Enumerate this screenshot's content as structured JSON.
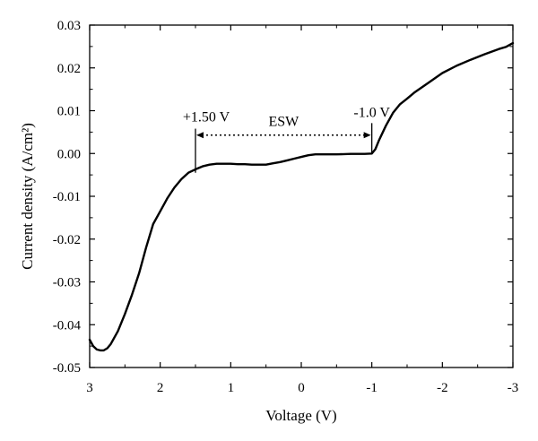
{
  "chart_data": {
    "type": "line",
    "title": "",
    "xlabel": "Voltage (V)",
    "ylabel": "Current density (A/cm²)",
    "xlim": [
      3,
      -3
    ],
    "ylim": [
      -0.05,
      0.03
    ],
    "x_reversed": true,
    "grid": false,
    "legend": "none",
    "x_ticks": [
      3,
      2,
      1,
      0,
      -1,
      -2,
      -3
    ],
    "x_tick_labels": [
      "3",
      "2",
      "1",
      "0",
      "-1",
      "-2",
      "-3"
    ],
    "y_ticks": [
      -0.05,
      -0.04,
      -0.03,
      -0.02,
      -0.01,
      0.0,
      0.01,
      0.02,
      0.03
    ],
    "y_tick_labels": [
      "-0.05",
      "-0.04",
      "-0.03",
      "-0.02",
      "-0.01",
      "0.00",
      "0.01",
      "0.02",
      "0.03"
    ],
    "line_color": "#000000",
    "series": [
      {
        "x": [
          3.0,
          2.95,
          2.9,
          2.85,
          2.8,
          2.75,
          2.7,
          2.6,
          2.5,
          2.4,
          2.3,
          2.2,
          2.1,
          2.0,
          1.9,
          1.8,
          1.7,
          1.6,
          1.5,
          1.4,
          1.3,
          1.2,
          1.1,
          1.0,
          0.9,
          0.8,
          0.7,
          0.6,
          0.5,
          0.4,
          0.3,
          0.2,
          0.1,
          0.0,
          -0.1,
          -0.2,
          -0.3,
          -0.5,
          -0.7,
          -0.9,
          -1.0,
          -1.05,
          -1.1,
          -1.2,
          -1.3,
          -1.4,
          -1.5,
          -1.6,
          -1.8,
          -2.0,
          -2.2,
          -2.4,
          -2.6,
          -2.8,
          -2.9,
          -3.0
        ],
        "y": [
          -0.0435,
          -0.045,
          -0.0458,
          -0.046,
          -0.046,
          -0.0455,
          -0.0445,
          -0.0415,
          -0.0375,
          -0.033,
          -0.028,
          -0.022,
          -0.0165,
          -0.0135,
          -0.0105,
          -0.008,
          -0.006,
          -0.0045,
          -0.0037,
          -0.003,
          -0.0026,
          -0.0024,
          -0.0024,
          -0.0024,
          -0.0025,
          -0.0025,
          -0.0026,
          -0.0026,
          -0.0026,
          -0.0023,
          -0.002,
          -0.0016,
          -0.0012,
          -0.0008,
          -0.0004,
          -0.0002,
          -0.0002,
          -0.0002,
          -0.0001,
          -0.0001,
          0.0,
          0.001,
          0.003,
          0.0065,
          0.0095,
          0.0115,
          0.0128,
          0.0142,
          0.0165,
          0.0188,
          0.0205,
          0.0219,
          0.0232,
          0.0244,
          0.0249,
          0.0258
        ]
      }
    ],
    "annotations": {
      "left_label": "+1.50 V",
      "left_x": 1.5,
      "left_y_bottom": -0.0045,
      "left_y_top": 0.0058,
      "right_label": "-1.0 V",
      "right_x": -1.0,
      "right_y_bottom": 0.0,
      "right_y_top": 0.0071,
      "esw_label": "ESW",
      "arrow_y": 0.0043
    }
  }
}
